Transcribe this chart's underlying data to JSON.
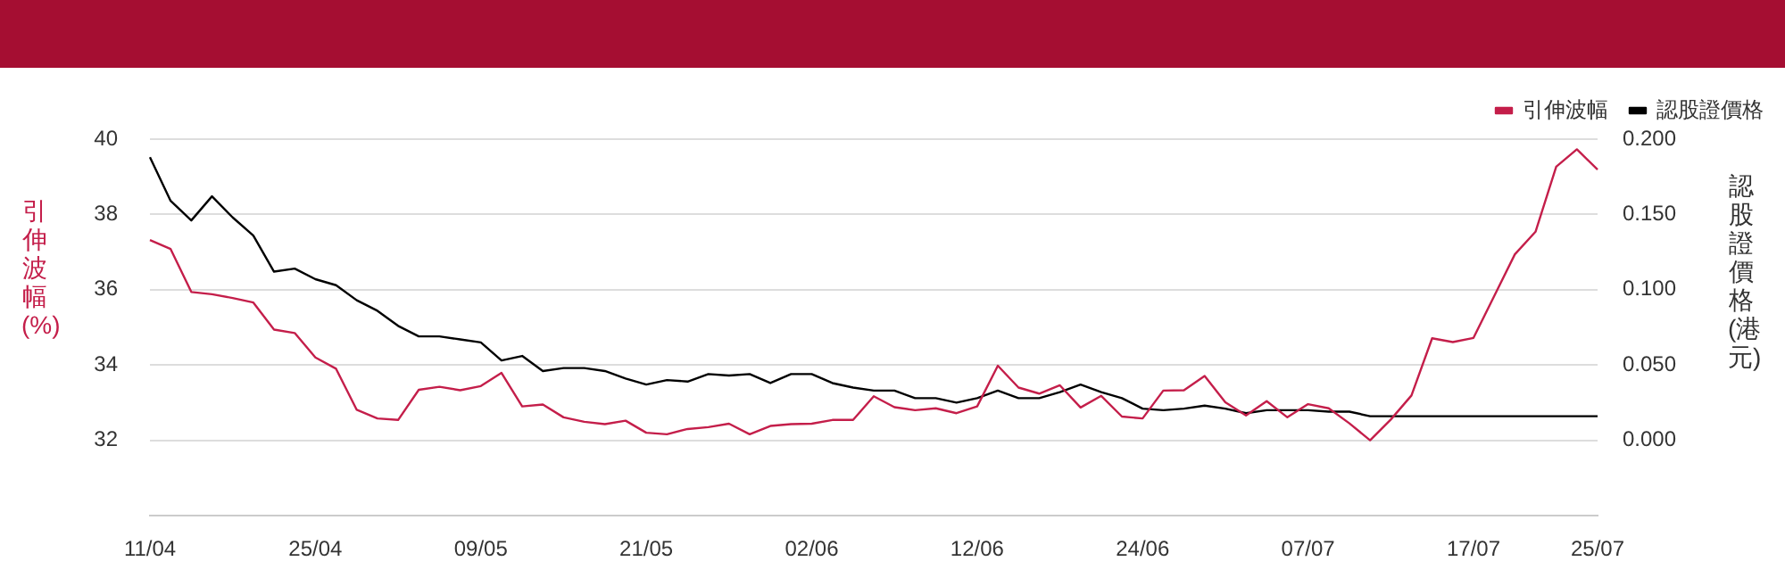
{
  "chart_data": {
    "type": "line",
    "ylabel": "引伸波幅 (%)",
    "y2label": "認股證價格 (港元)",
    "categories": [
      "11/04",
      null,
      null,
      null,
      null,
      null,
      null,
      null,
      "25/04",
      null,
      null,
      null,
      null,
      null,
      null,
      null,
      "09/05",
      null,
      null,
      null,
      null,
      null,
      null,
      null,
      "21/05",
      null,
      null,
      null,
      null,
      null,
      null,
      null,
      "02/06",
      null,
      null,
      null,
      null,
      null,
      null,
      null,
      "12/06",
      null,
      null,
      null,
      null,
      null,
      null,
      null,
      "24/06",
      null,
      null,
      null,
      null,
      null,
      null,
      null,
      "07/07",
      null,
      null,
      null,
      null,
      null,
      null,
      null,
      "17/07",
      null,
      null,
      null,
      null,
      null,
      "25/07"
    ],
    "series": [
      {
        "name": "引伸波幅",
        "color": "#c41e4a",
        "axis": "y",
        "values": [
          37.32,
          37.08,
          35.94,
          35.88,
          35.78,
          35.66,
          34.94,
          34.85,
          34.2,
          33.9,
          32.81,
          32.58,
          32.54,
          33.34,
          33.42,
          33.33,
          33.44,
          33.79,
          32.9,
          32.95,
          32.61,
          32.49,
          32.43,
          32.52,
          32.2,
          32.16,
          32.3,
          32.35,
          32.44,
          32.16,
          32.38,
          32.43,
          32.44,
          32.54,
          32.54,
          33.17,
          32.88,
          32.8,
          32.85,
          32.72,
          32.9,
          33.98,
          33.4,
          33.24,
          33.46,
          32.87,
          33.18,
          32.63,
          32.58,
          33.32,
          33.33,
          33.71,
          33.01,
          32.66,
          33.04,
          32.61,
          32.96,
          32.85,
          32.45,
          32.0,
          32.55,
          33.19,
          34.71,
          34.61,
          34.72,
          35.83,
          36.94,
          37.54,
          39.27,
          39.73,
          39.19
        ]
      },
      {
        "name": "認股證價格",
        "color": "#000000",
        "axis": "y2",
        "values": [
          0.188,
          0.159,
          0.146,
          0.162,
          0.148,
          0.136,
          0.112,
          0.114,
          0.107,
          0.103,
          0.093,
          0.086,
          0.076,
          0.069,
          0.069,
          0.067,
          0.065,
          0.053,
          0.056,
          0.046,
          0.048,
          0.048,
          0.046,
          0.041,
          0.037,
          0.04,
          0.039,
          0.044,
          0.043,
          0.044,
          0.038,
          0.044,
          0.044,
          0.038,
          0.035,
          0.033,
          0.033,
          0.028,
          0.028,
          0.025,
          0.028,
          0.033,
          0.028,
          0.028,
          0.032,
          0.037,
          0.032,
          0.028,
          0.021,
          0.02,
          0.021,
          0.023,
          0.021,
          0.018,
          0.02,
          0.02,
          0.02,
          0.019,
          0.019,
          0.016,
          0.016,
          0.016,
          0.016,
          0.016,
          0.016,
          0.016,
          0.016,
          0.016,
          0.016,
          0.016,
          0.016
        ]
      }
    ],
    "ylim": [
      30,
      40
    ],
    "yticks": [
      32,
      34,
      36,
      38,
      40
    ],
    "y2lim": [
      -0.05,
      0.2
    ],
    "y2ticks": [
      {
        "value": 0,
        "label": "0.000"
      },
      {
        "value": 0.05,
        "label": "0.050"
      },
      {
        "value": 0.1,
        "label": "0.100"
      },
      {
        "value": 0.15,
        "label": "0.150"
      },
      {
        "value": 0.2,
        "label": "0.200"
      }
    ],
    "grid": "y",
    "legend": "top right",
    "marker": "none",
    "line_style": "solid"
  }
}
